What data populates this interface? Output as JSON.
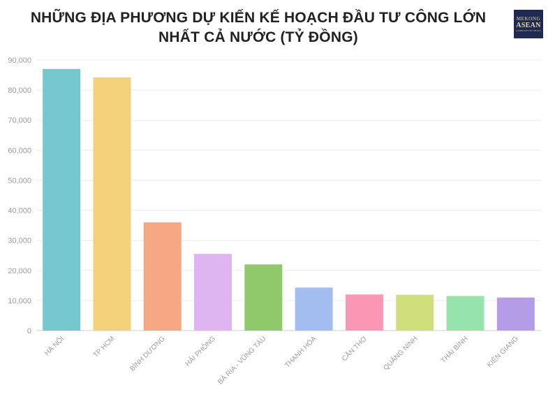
{
  "header": {
    "title": "NHỮNG ĐỊA PHƯƠNG DỰ KIẾN KẾ HOẠCH ĐẦU TƯ CÔNG LỚN NHẤT CẢ NƯỚC (TỶ ĐỒNG)"
  },
  "logo": {
    "line1": "MEKONG",
    "line2": "ASEAN",
    "line3": "COMMUNITY OF THE AEC"
  },
  "chart_data": {
    "type": "bar",
    "title": "NHỮNG ĐỊA PHƯƠNG DỰ KIẾN KẾ HOẠCH ĐẦU TƯ CÔNG LỚN NHẤT CẢ NƯỚC (TỶ ĐỒNG)",
    "xlabel": "",
    "ylabel": "",
    "categories": [
      "HÀ NỘI",
      "TP HCM",
      "BÌNH DƯƠNG",
      "HẢI PHÒNG",
      "BÀ RỊA - VŨNG TÀU",
      "THANH HÓA",
      "CẦN THƠ",
      "QUẢNG NINH",
      "THÁI BÌNH",
      "KIÊN GIANG"
    ],
    "values": [
      87000,
      84200,
      36000,
      25500,
      22000,
      14300,
      12000,
      11900,
      11500,
      11000
    ],
    "colors": [
      "#76c8cf",
      "#f4d27c",
      "#f5a783",
      "#deb5f0",
      "#8fc96c",
      "#a3bdf0",
      "#fa97b5",
      "#d0de7c",
      "#96e3ad",
      "#b59ce6"
    ],
    "ylim": [
      0,
      90000
    ],
    "yticks": [
      0,
      10000,
      20000,
      30000,
      40000,
      50000,
      60000,
      70000,
      80000,
      90000
    ],
    "ytick_labels": [
      "0",
      "10,000",
      "20,000",
      "30,000",
      "40,000",
      "50,000",
      "60,000",
      "70,000",
      "80,000",
      "90,000"
    ],
    "grid": true,
    "legend": "none"
  }
}
